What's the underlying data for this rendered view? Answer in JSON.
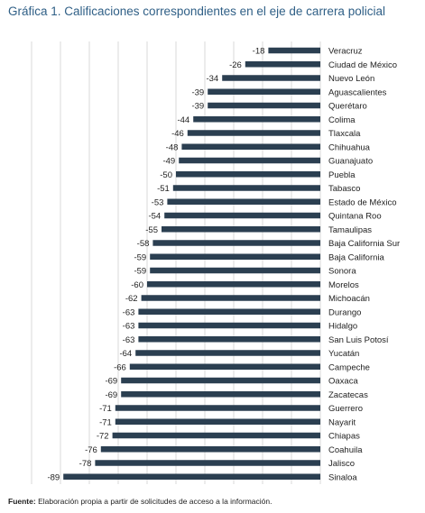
{
  "title": "Gráfica 1. Calificaciones correspondientes en el eje de carrera policial",
  "source": {
    "label": "Fuente:",
    "text": " Elaboración propia a partir de solicitudes de acceso a la información."
  },
  "chart_data": {
    "type": "bar",
    "orientation": "horizontal",
    "color": "#2b3f51",
    "xlim": [
      -100,
      0
    ],
    "grid": true,
    "categories": [
      "Veracruz",
      "Ciudad de México",
      "Nuevo León",
      "Aguascalientes",
      "Querétaro",
      "Colima",
      "Tlaxcala",
      "Chihuahua",
      "Guanajuato",
      "Puebla",
      "Tabasco",
      "Estado de México",
      "Quintana Roo",
      "Tamaulipas",
      "Baja California Sur",
      "Baja California",
      "Sonora",
      "Morelos",
      "Michoacán",
      "Durango",
      "Hidalgo",
      "San Luis Potosí",
      "Yucatán",
      "Campeche",
      "Oaxaca",
      "Zacatecas",
      "Guerrero",
      "Nayarit",
      "Chiapas",
      "Coahuila",
      "Jalisco",
      "Sinaloa"
    ],
    "values": [
      -18,
      -26,
      -34,
      -39,
      -39,
      -44,
      -46,
      -48,
      -49,
      -50,
      -51,
      -53,
      -54,
      -55,
      -58,
      -59,
      -59,
      -60,
      -62,
      -63,
      -63,
      -63,
      -64,
      -66,
      -69,
      -69,
      -71,
      -71,
      -72,
      -76,
      -78,
      -89
    ]
  }
}
